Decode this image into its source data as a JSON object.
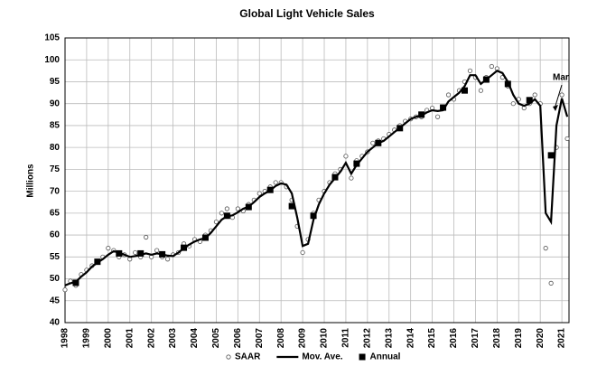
{
  "chart_data": {
    "type": "line",
    "title": "Global Light Vehicle Sales",
    "y_label": "Millions",
    "ylim": [
      40,
      105
    ],
    "yticks": [
      40,
      45,
      50,
      55,
      60,
      65,
      70,
      75,
      80,
      85,
      90,
      95,
      100,
      105
    ],
    "xlim": [
      1998,
      2021.33
    ],
    "xticks": [
      1998,
      1999,
      2000,
      2001,
      2002,
      2003,
      2004,
      2005,
      2006,
      2007,
      2008,
      2009,
      2010,
      2011,
      2012,
      2013,
      2014,
      2015,
      2016,
      2017,
      2018,
      2019,
      2020,
      2021
    ],
    "grid": true,
    "legend": "bottom",
    "annotation": {
      "text": "Mar"
    },
    "x": [
      1998,
      1998.25,
      1998.5,
      1998.75,
      1999,
      1999.25,
      1999.5,
      1999.75,
      2000,
      2000.25,
      2000.5,
      2000.75,
      2001,
      2001.25,
      2001.5,
      2001.75,
      2002,
      2002.25,
      2002.5,
      2002.75,
      2003,
      2003.25,
      2003.5,
      2003.75,
      2004,
      2004.25,
      2004.5,
      2004.75,
      2005,
      2005.25,
      2005.5,
      2005.75,
      2006,
      2006.25,
      2006.5,
      2006.75,
      2007,
      2007.25,
      2007.5,
      2007.75,
      2008,
      2008.25,
      2008.5,
      2008.75,
      2009,
      2009.25,
      2009.5,
      2009.75,
      2010,
      2010.25,
      2010.5,
      2010.75,
      2011,
      2011.25,
      2011.5,
      2011.75,
      2012,
      2012.25,
      2012.5,
      2012.75,
      2013,
      2013.25,
      2013.5,
      2013.75,
      2014,
      2014.25,
      2014.5,
      2014.75,
      2015,
      2015.25,
      2015.5,
      2015.75,
      2016,
      2016.25,
      2016.5,
      2016.75,
      2017,
      2017.25,
      2017.5,
      2017.75,
      2018,
      2018.25,
      2018.5,
      2018.75,
      2019,
      2019.25,
      2019.5,
      2019.75,
      2020,
      2020.25,
      2020.5,
      2020.75,
      2021,
      2021.25
    ],
    "series": [
      {
        "name": "SAAR",
        "kind": "points",
        "marker": "circle",
        "color": "#555555",
        "values": [
          47.5,
          49.5,
          48.5,
          51,
          52,
          53,
          54,
          55,
          57,
          56.5,
          55,
          55.5,
          54.5,
          56,
          55,
          59.5,
          55,
          56.5,
          55,
          54.5,
          55.5,
          56,
          58,
          57.5,
          59,
          58.5,
          60,
          61,
          63,
          65,
          66,
          64,
          66,
          65.5,
          67,
          68,
          69.5,
          70,
          71,
          72,
          72,
          71,
          68,
          62,
          56,
          59,
          65,
          68,
          70,
          72,
          74,
          75,
          78,
          73,
          77,
          78,
          79,
          81,
          81.5,
          82,
          83,
          84,
          85,
          86,
          86.5,
          87,
          87,
          88.5,
          89,
          87,
          89,
          92,
          91,
          93,
          95,
          97.5,
          96,
          93,
          96,
          98.5,
          98,
          96,
          94,
          90,
          91,
          89,
          90,
          92,
          90,
          57,
          49,
          80,
          92,
          82
        ]
      },
      {
        "name": "Mov. Ave.",
        "kind": "line",
        "color": "#000000",
        "values": [
          48.5,
          49,
          49.3,
          50.5,
          51.5,
          52.8,
          53.7,
          54.5,
          55.5,
          56.3,
          56,
          55.5,
          55,
          55.2,
          55.5,
          55.8,
          55.5,
          55.8,
          55.6,
          55.3,
          55.2,
          56,
          57,
          57.8,
          58.5,
          59,
          59.3,
          60.5,
          62,
          63.5,
          64.3,
          64.5,
          65.2,
          66,
          66.5,
          67.5,
          68.7,
          69.5,
          70.2,
          71.2,
          71.8,
          71.5,
          69.5,
          64,
          57.5,
          58,
          63.5,
          67,
          69.5,
          71.5,
          73,
          74.5,
          76.5,
          74,
          76,
          77.5,
          79,
          80,
          81,
          81.5,
          82.5,
          83.5,
          84.5,
          85.5,
          86.5,
          87,
          87.3,
          88,
          88.5,
          88.3,
          88.5,
          90.5,
          91.5,
          92.5,
          94,
          96.5,
          96.5,
          94.5,
          95.5,
          96.5,
          97.5,
          97,
          95,
          92,
          90,
          89.5,
          90,
          91,
          89.5,
          65,
          63,
          85,
          91.2,
          87
        ]
      },
      {
        "name": "Annual",
        "kind": "points",
        "marker": "square",
        "color": "#000000",
        "x": [
          1998.5,
          1999.5,
          2000.5,
          2001.5,
          2002.5,
          2003.5,
          2004.5,
          2005.5,
          2006.5,
          2007.5,
          2008.5,
          2009.5,
          2010.5,
          2011.5,
          2012.5,
          2013.5,
          2014.5,
          2015.5,
          2016.5,
          2017.5,
          2018.5,
          2019.5,
          2020.5
        ],
        "values": [
          49.1,
          53.9,
          55.8,
          55.8,
          55.6,
          57.1,
          59.4,
          64.4,
          66.4,
          70.3,
          66.6,
          64.4,
          73.2,
          76.3,
          81,
          84.4,
          87.5,
          89.1,
          93,
          95.5,
          94.5,
          90.8,
          78.2
        ]
      }
    ]
  }
}
